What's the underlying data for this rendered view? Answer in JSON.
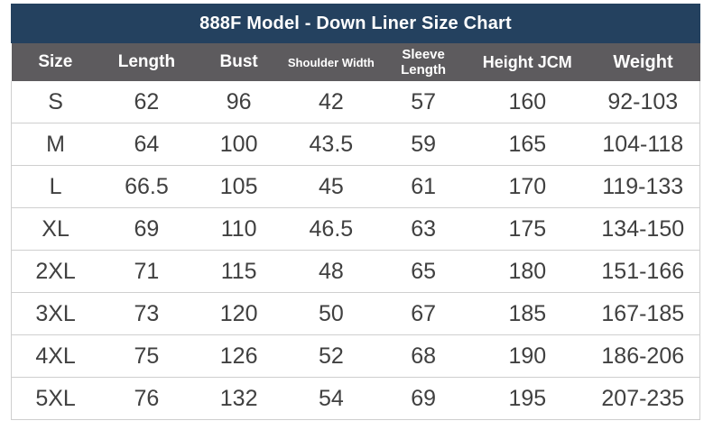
{
  "colors": {
    "title_bar_navy": "#24415f",
    "header_gray": "#5d5b5e",
    "body_text": "#404040",
    "row_border": "#cfcfcf",
    "background": "#ffffff"
  },
  "chart_data": {
    "type": "table",
    "title": "888F Model - Down Liner Size Chart",
    "columns": [
      "Size",
      "Length",
      "Bust",
      "Shoulder Width",
      "Sleeve Length",
      "Height JCM",
      "Weight"
    ],
    "rows": [
      [
        "S",
        "62",
        "96",
        "42",
        "57",
        "160",
        "92-103"
      ],
      [
        "M",
        "64",
        "100",
        "43.5",
        "59",
        "165",
        "104-118"
      ],
      [
        "L",
        "66.5",
        "105",
        "45",
        "61",
        "170",
        "119-133"
      ],
      [
        "XL",
        "69",
        "110",
        "46.5",
        "63",
        "175",
        "134-150"
      ],
      [
        "2XL",
        "71",
        "115",
        "48",
        "65",
        "180",
        "151-166"
      ],
      [
        "3XL",
        "73",
        "120",
        "50",
        "67",
        "185",
        "167-185"
      ],
      [
        "4XL",
        "75",
        "126",
        "52",
        "68",
        "190",
        "186-206"
      ],
      [
        "5XL",
        "76",
        "132",
        "54",
        "69",
        "195",
        "207-235"
      ]
    ]
  }
}
